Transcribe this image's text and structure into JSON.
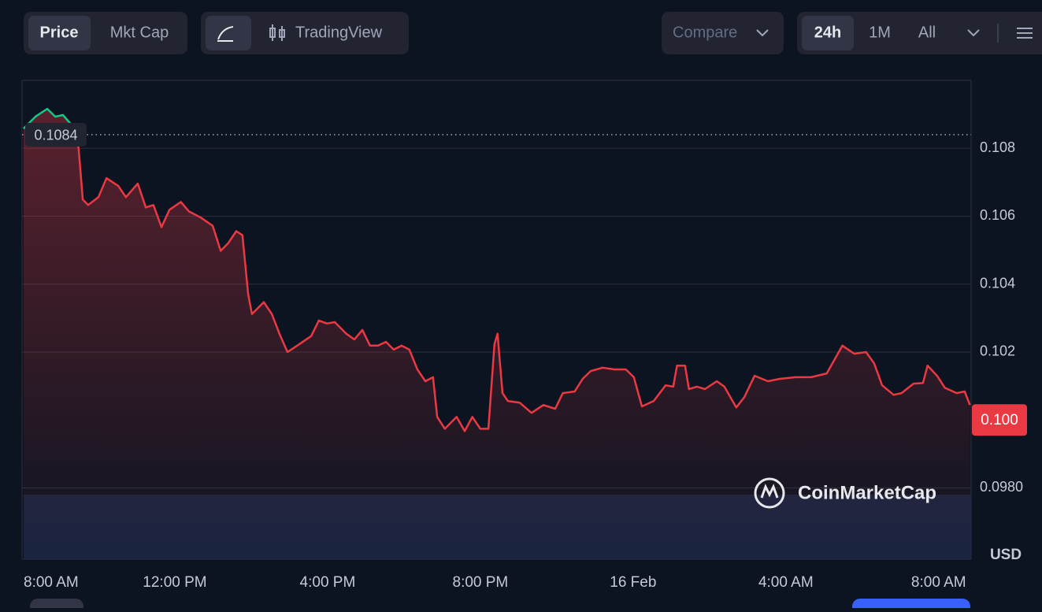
{
  "toolbar": {
    "price": "Price",
    "mkt_cap": "Mkt Cap",
    "trading_view": "TradingView",
    "compare": "Compare",
    "ranges": [
      "24h",
      "1M",
      "All"
    ]
  },
  "chart_data": {
    "type": "line",
    "color": "#ea3943",
    "up_color": "#16c784",
    "x": [
      0.04,
      0.35,
      0.66,
      0.87,
      1.07,
      1.38,
      1.48,
      1.59,
      1.73,
      2.0,
      2.21,
      2.52,
      2.72,
      3.03,
      3.24,
      3.44,
      3.65,
      3.86,
      4.16,
      4.37,
      4.68,
      4.99,
      5.2,
      5.4,
      5.61,
      5.77,
      5.92,
      6.02,
      6.33,
      6.54,
      6.74,
      6.95,
      7.26,
      7.57,
      7.77,
      7.98,
      8.19,
      8.49,
      8.7,
      8.91,
      9.11,
      9.32,
      9.53,
      9.73,
      9.94,
      10.14,
      10.35,
      10.56,
      10.76,
      10.87,
      11.07,
      11.38,
      11.59,
      11.79,
      12.0,
      12.21,
      12.37,
      12.45,
      12.58,
      12.72,
      13.03,
      13.34,
      13.65,
      13.96,
      14.16,
      14.47,
      14.68,
      14.89,
      15.2,
      15.51,
      15.81,
      16.02,
      16.23,
      16.54,
      16.85,
      17.05,
      17.15,
      17.36,
      17.46,
      17.67,
      17.88,
      18.19,
      18.39,
      18.7,
      18.91,
      19.18,
      19.53,
      19.84,
      20.25,
      20.66,
      21.07,
      21.48,
      21.79,
      22.1,
      22.31,
      22.52,
      22.82,
      23.03,
      23.34,
      23.59,
      23.71,
      23.96,
      24.16,
      24.47,
      24.68,
      24.82
    ],
    "values": [
      0.10858,
      0.10893,
      0.10916,
      0.10893,
      0.10898,
      0.10858,
      0.108,
      0.10649,
      0.10633,
      0.10656,
      0.10712,
      0.10689,
      0.10656,
      0.10696,
      0.10626,
      0.10633,
      0.10568,
      0.10619,
      0.10642,
      0.10614,
      0.10596,
      0.10572,
      0.10498,
      0.10521,
      0.10556,
      0.10544,
      0.1037,
      0.10312,
      0.10347,
      0.10312,
      0.10254,
      0.102,
      0.10223,
      0.10247,
      0.10293,
      0.10284,
      0.10288,
      0.10254,
      0.10237,
      0.10265,
      0.10219,
      0.10219,
      0.1023,
      0.10207,
      0.10219,
      0.10207,
      0.10149,
      0.10114,
      0.10126,
      0.10009,
      0.09974,
      0.10009,
      0.09967,
      0.10009,
      0.09974,
      0.09974,
      0.10223,
      0.10254,
      0.10079,
      0.10056,
      0.10051,
      0.10021,
      0.10044,
      0.10033,
      0.10079,
      0.10084,
      0.10121,
      0.10144,
      0.10154,
      0.10149,
      0.10149,
      0.10126,
      0.1004,
      0.10056,
      0.10102,
      0.10098,
      0.1016,
      0.1016,
      0.10091,
      0.10098,
      0.10091,
      0.10114,
      0.10098,
      0.10037,
      0.10067,
      0.1013,
      0.10114,
      0.10121,
      0.10126,
      0.10126,
      0.10137,
      0.10219,
      0.10195,
      0.102,
      0.10167,
      0.10102,
      0.10074,
      0.10079,
      0.10107,
      0.10109,
      0.1016,
      0.1013,
      0.10095,
      0.10079,
      0.10084,
      0.10044
    ],
    "xlim": [
      0,
      24.85
    ],
    "xticks": [
      {
        "value": 0,
        "label": "8:00 AM"
      },
      {
        "value": 4,
        "label": "12:00 PM"
      },
      {
        "value": 8,
        "label": "4:00 PM"
      },
      {
        "value": 12,
        "label": "8:00 PM"
      },
      {
        "value": 16,
        "label": "16 Feb"
      },
      {
        "value": 20,
        "label": "4:00 AM"
      },
      {
        "value": 24,
        "label": "8:00 AM"
      }
    ],
    "ylim": [
      0.0959,
      0.11
    ],
    "yticks": [
      0.108,
      0.106,
      0.104,
      0.102,
      {
        "value": 0.098,
        "label": "0.0980"
      }
    ],
    "reference_value": 0.1084,
    "last_price": {
      "value": 0.1,
      "label": "0.100"
    },
    "y_unit": "USD",
    "watermark": "CoinMarketCap",
    "grid": true
  }
}
